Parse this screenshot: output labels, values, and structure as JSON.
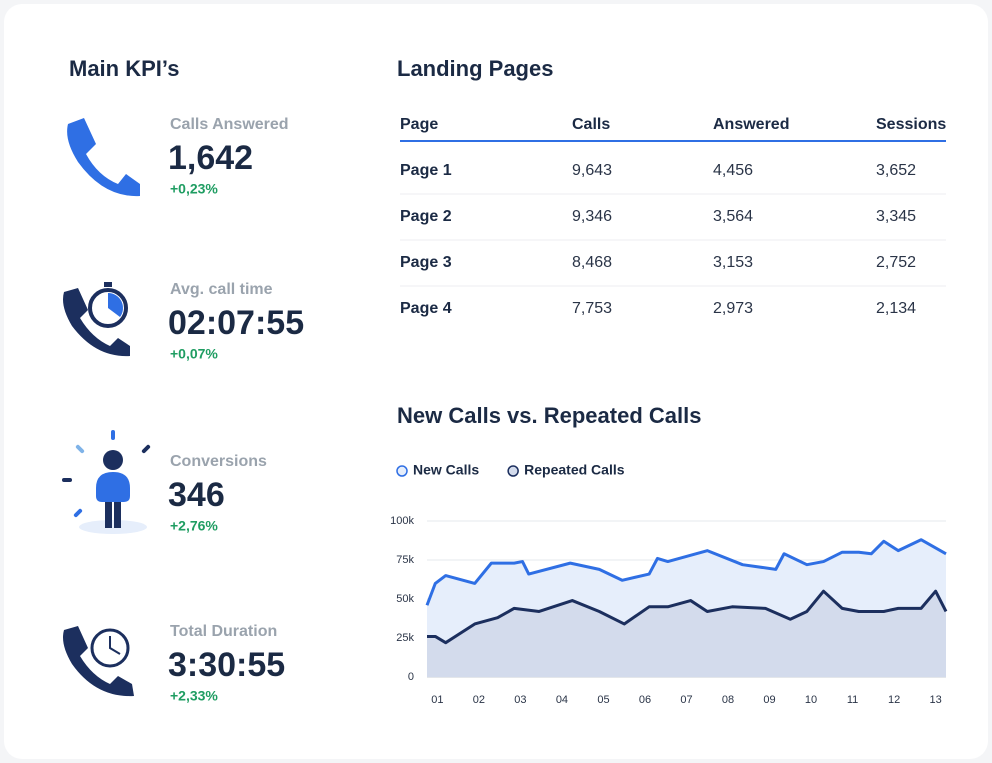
{
  "kpi_title": "Main KPI’s",
  "kpis": [
    {
      "label": "Calls Answered",
      "value": "1,642",
      "change": "+0,23%"
    },
    {
      "label": "Avg. call time",
      "value": "02:07:55",
      "change": "+0,07%"
    },
    {
      "label": "Conversions",
      "value": "346",
      "change": "+2,76%"
    },
    {
      "label": "Total Duration",
      "value": "3:30:55",
      "change": "+2,33%"
    }
  ],
  "table": {
    "title": "Landing Pages",
    "columns": [
      "Page",
      "Calls",
      "Answered",
      "Sessions"
    ],
    "rows": [
      [
        "Page 1",
        "9,643",
        "4,456",
        "3,652"
      ],
      [
        "Page 2",
        "9,346",
        "3,564",
        "3,345"
      ],
      [
        "Page 3",
        "8,468",
        "3,153",
        "2,752"
      ],
      [
        "Page 4",
        "7,753",
        "2,973",
        "2,134"
      ]
    ]
  },
  "chart_data": {
    "type": "area",
    "title": "New Calls vs. Repeated Calls",
    "xlim": [
      0.75,
      13.25
    ],
    "xticks": [
      {
        "value": 1,
        "label": "01"
      },
      {
        "value": 2,
        "label": "02"
      },
      {
        "value": 3,
        "label": "03"
      },
      {
        "value": 4,
        "label": "04"
      },
      {
        "value": 5,
        "label": "05"
      },
      {
        "value": 6,
        "label": "06"
      },
      {
        "value": 7,
        "label": "07"
      },
      {
        "value": 8,
        "label": "08"
      },
      {
        "value": 9,
        "label": "09"
      },
      {
        "value": 10,
        "label": "10"
      },
      {
        "value": 11,
        "label": "11"
      },
      {
        "value": 12,
        "label": "12"
      },
      {
        "value": 13,
        "label": "13"
      }
    ],
    "ylim": [
      0,
      100000
    ],
    "yticks": [
      0,
      {
        "value": 25000,
        "label": "25k"
      },
      {
        "value": 50000,
        "label": "50k"
      },
      {
        "value": 75000,
        "label": "75k"
      },
      {
        "value": 100000,
        "label": "100k"
      }
    ],
    "grid": true,
    "legend": "top-left",
    "series": [
      {
        "name": "New Calls",
        "color": "#2f6fe4",
        "fill": "#e6eefb",
        "x": [
          0.75,
          0.95,
          1.2,
          1.9,
          2.3,
          2.85,
          3.05,
          3.2,
          4.2,
          4.9,
          5.45,
          6.1,
          6.3,
          6.55,
          7.5,
          8.35,
          9.15,
          9.35,
          9.9,
          10.3,
          10.75,
          11.15,
          11.45,
          11.75,
          12.1,
          12.65,
          13.25
        ],
        "values": [
          46000,
          60000,
          65000,
          60000,
          73000,
          73000,
          74000,
          66000,
          73000,
          69000,
          62000,
          66000,
          76000,
          74000,
          81000,
          72000,
          69000,
          79000,
          72000,
          74000,
          80000,
          80000,
          79000,
          87000,
          81000,
          88000,
          79000
        ]
      },
      {
        "name": "Repeated Calls",
        "color": "#1c2f5e",
        "fill": "#d3dbec",
        "x": [
          0.75,
          0.95,
          1.2,
          1.9,
          2.45,
          2.85,
          3.45,
          4.25,
          4.9,
          5.5,
          6.1,
          6.55,
          7.1,
          7.5,
          8.1,
          8.9,
          9.5,
          9.9,
          10.3,
          10.75,
          11.15,
          11.75,
          12.1,
          12.65,
          13.0,
          13.25
        ],
        "values": [
          26000,
          26000,
          22000,
          34000,
          38000,
          44000,
          42000,
          49000,
          42000,
          34000,
          45000,
          45000,
          49000,
          42000,
          45000,
          44000,
          37000,
          42000,
          55000,
          44000,
          42000,
          42000,
          44000,
          44000,
          55000,
          42000
        ]
      }
    ]
  }
}
